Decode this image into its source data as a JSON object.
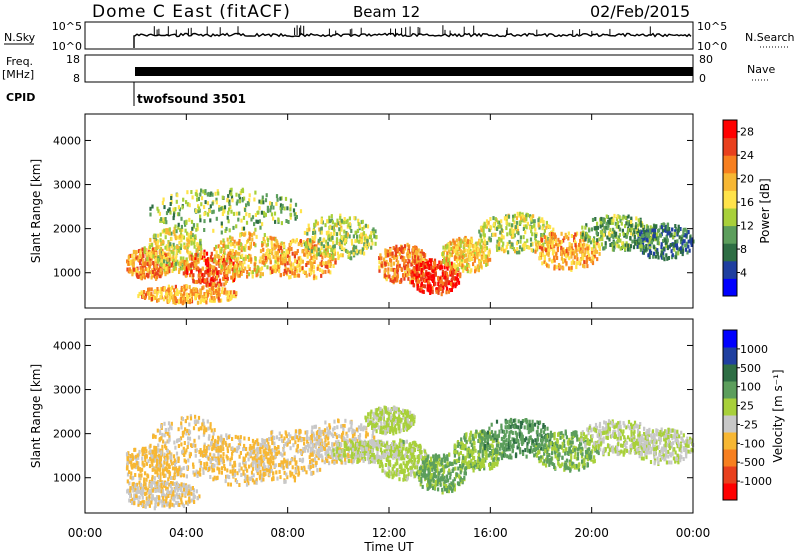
{
  "header": {
    "station": "Dome C East (fitACF)",
    "beam": "Beam 12",
    "date": "02/Feb/2015"
  },
  "aux": {
    "nsky_label": "N.Sky",
    "nsky_ticks": [
      "10^5",
      "10^0"
    ],
    "nsearch_label": "N.Search",
    "nsearch_ticks": [
      "10^5",
      "10^0"
    ],
    "freq_label_1": "Freq.",
    "freq_label_2": "[MHz]",
    "freq_ticks": [
      "18",
      "8"
    ],
    "nave_label": "Nave",
    "nave_ticks": [
      "80",
      "0"
    ],
    "cpid_label": "CPID",
    "cpid_text": "twofsound 3501"
  },
  "xaxis": {
    "label": "Time UT",
    "ticks": [
      "00:00",
      "04:00",
      "08:00",
      "12:00",
      "16:00",
      "20:00",
      "00:00"
    ]
  },
  "colors": {
    "power": [
      "#0000ff",
      "#1f3fa0",
      "#2e6e44",
      "#5c9e5c",
      "#a8d03a",
      "#ffe34a",
      "#f7b733",
      "#f77f1f",
      "#e8401d",
      "#ff0000"
    ],
    "velocity": [
      "#ff0000",
      "#e8401d",
      "#f77f1f",
      "#f7b733",
      "#c8c8c8",
      "#a8d03a",
      "#5c9e5c",
      "#2e6e44",
      "#1f3fa0",
      "#0000ff"
    ]
  },
  "chart_data": [
    {
      "type": "heatmap",
      "name": "power",
      "ylabel": "Slant Range [km]",
      "yticks": [
        "1000",
        "2000",
        "3000",
        "4000"
      ],
      "ylim": [
        200,
        4600
      ],
      "xlim": [
        0,
        24
      ],
      "colorbar_label": "Power [dB]",
      "colorbar_ticks": [
        "4",
        "8",
        "12",
        "16",
        "20",
        "24",
        "28"
      ],
      "zlim": [
        0,
        30
      ],
      "data_start_hour": 1.6,
      "blobs": [
        {
          "t": 2.5,
          "r": 1200,
          "dt": 1.0,
          "dr": 350,
          "v": 22
        },
        {
          "t": 3.5,
          "r": 1500,
          "dt": 1.2,
          "dr": 500,
          "v": 16
        },
        {
          "t": 5.0,
          "r": 1100,
          "dt": 1.2,
          "dr": 400,
          "v": 24
        },
        {
          "t": 6.5,
          "r": 1400,
          "dt": 1.5,
          "dr": 500,
          "v": 18
        },
        {
          "t": 8.5,
          "r": 1300,
          "dt": 1.5,
          "dr": 450,
          "v": 20
        },
        {
          "t": 10.0,
          "r": 1800,
          "dt": 1.5,
          "dr": 500,
          "v": 14
        },
        {
          "t": 12.5,
          "r": 1200,
          "dt": 1.0,
          "dr": 450,
          "v": 22
        },
        {
          "t": 13.8,
          "r": 900,
          "dt": 1.0,
          "dr": 400,
          "v": 27
        },
        {
          "t": 15.0,
          "r": 1400,
          "dt": 1.0,
          "dr": 400,
          "v": 18
        },
        {
          "t": 17.0,
          "r": 1900,
          "dt": 1.5,
          "dr": 450,
          "v": 14
        },
        {
          "t": 19.0,
          "r": 1500,
          "dt": 1.3,
          "dr": 450,
          "v": 20
        },
        {
          "t": 21.0,
          "r": 1900,
          "dt": 1.5,
          "dr": 400,
          "v": 11
        },
        {
          "t": 22.8,
          "r": 1700,
          "dt": 1.2,
          "dr": 400,
          "v": 8
        },
        {
          "t": 5.5,
          "r": 2400,
          "dt": 3.0,
          "dr": 500,
          "v": 12
        },
        {
          "t": 4.0,
          "r": 500,
          "dt": 2.0,
          "dr": 200,
          "v": 20
        }
      ]
    },
    {
      "type": "heatmap",
      "name": "velocity",
      "ylabel": "Slant Range [km]",
      "yticks": [
        "1000",
        "2000",
        "3000",
        "4000"
      ],
      "ylim": [
        200,
        4600
      ],
      "xlim": [
        0,
        24
      ],
      "colorbar_label": "Velocity [m s⁻¹]",
      "colorbar_ticks": [
        "1000",
        "500",
        "100",
        "25",
        "-25",
        "-100",
        "-500",
        "-1000"
      ],
      "zlim": [
        -1200,
        1200
      ],
      "data_start_hour": 1.6,
      "blobs": [
        {
          "t": 2.5,
          "r": 1200,
          "dt": 1.2,
          "dr": 500,
          "v": -300
        },
        {
          "t": 4.0,
          "r": 1700,
          "dt": 1.5,
          "dr": 700,
          "v": -250
        },
        {
          "t": 6.0,
          "r": 1400,
          "dt": 1.5,
          "dr": 600,
          "v": -300
        },
        {
          "t": 8.0,
          "r": 1500,
          "dt": 1.5,
          "dr": 600,
          "v": -250
        },
        {
          "t": 10.0,
          "r": 1800,
          "dt": 1.5,
          "dr": 500,
          "v": -200
        },
        {
          "t": 3.0,
          "r": 600,
          "dt": 1.5,
          "dr": 300,
          "v": -200
        },
        {
          "t": 12.5,
          "r": 1400,
          "dt": 1.0,
          "dr": 450,
          "v": 100
        },
        {
          "t": 14.0,
          "r": 1100,
          "dt": 1.0,
          "dr": 450,
          "v": 300
        },
        {
          "t": 15.5,
          "r": 1600,
          "dt": 1.0,
          "dr": 450,
          "v": 200
        },
        {
          "t": 17.0,
          "r": 1900,
          "dt": 1.5,
          "dr": 450,
          "v": 400
        },
        {
          "t": 19.0,
          "r": 1600,
          "dt": 1.3,
          "dr": 450,
          "v": 250
        },
        {
          "t": 21.0,
          "r": 1900,
          "dt": 1.5,
          "dr": 400,
          "v": 0
        },
        {
          "t": 22.8,
          "r": 1700,
          "dt": 1.2,
          "dr": 400,
          "v": -40
        },
        {
          "t": 11.0,
          "r": 1600,
          "dt": 1.5,
          "dr": 250,
          "v": 0
        },
        {
          "t": 12.0,
          "r": 2300,
          "dt": 1.0,
          "dr": 300,
          "v": 60
        }
      ]
    }
  ]
}
